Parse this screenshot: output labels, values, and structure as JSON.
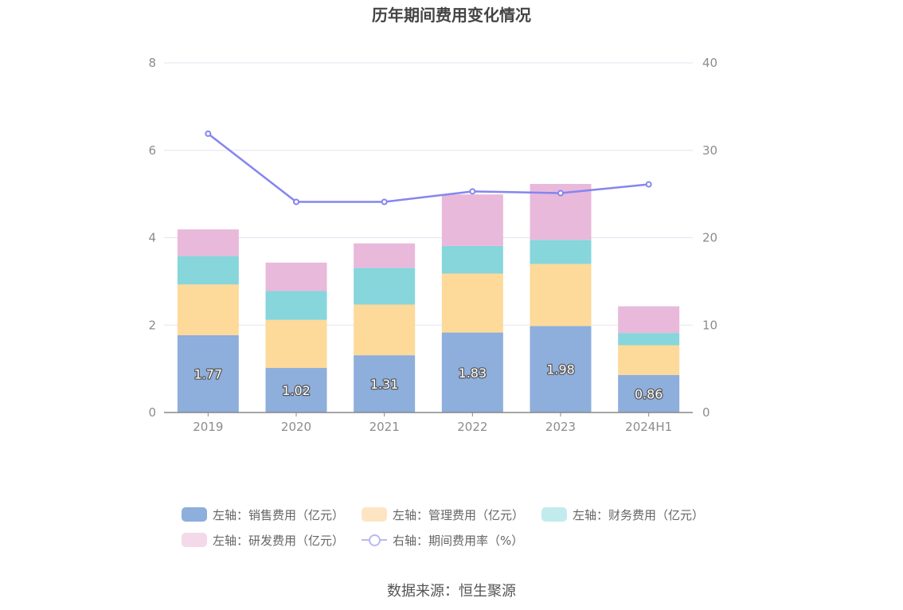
{
  "chart_data": {
    "type": "bar",
    "title": "历年期间费用变化情况",
    "categories": [
      "2019",
      "2020",
      "2021",
      "2022",
      "2023",
      "2024H1"
    ],
    "ylim_left": [
      0,
      8
    ],
    "ylim_right": [
      0,
      40
    ],
    "yticks_left": [
      "0",
      "2",
      "4",
      "6",
      "8"
    ],
    "yticks_right": [
      "0",
      "10",
      "20",
      "30",
      "40"
    ],
    "stacked": true,
    "grid": true,
    "legend_position": "bottom",
    "series": [
      {
        "name": "左轴：销售费用（亿元）",
        "axis": "left",
        "type": "bar",
        "color": "#8eaedb",
        "values": [
          1.77,
          1.02,
          1.31,
          1.83,
          1.98,
          0.86
        ],
        "labels": [
          "1.77",
          "1.02",
          "1.31",
          "1.83",
          "1.98",
          "0.86"
        ]
      },
      {
        "name": "左轴：管理费用（亿元）",
        "axis": "left",
        "type": "bar",
        "color": "#fdd99a",
        "values": [
          1.16,
          1.1,
          1.16,
          1.35,
          1.42,
          0.68
        ]
      },
      {
        "name": "左轴：财务费用（亿元）",
        "axis": "left",
        "type": "bar",
        "color": "#86d6dc",
        "values": [
          0.65,
          0.66,
          0.84,
          0.63,
          0.55,
          0.28
        ]
      },
      {
        "name": "左轴：研发费用（亿元）",
        "axis": "left",
        "type": "bar",
        "color": "#e8b9da",
        "values": [
          0.61,
          0.65,
          0.56,
          1.18,
          1.28,
          0.61
        ]
      },
      {
        "name": "右轴：期间费用率（%）",
        "axis": "right",
        "type": "line",
        "color": "#8585f0",
        "values": [
          31.9,
          24.1,
          24.1,
          25.3,
          25.1,
          26.1
        ]
      }
    ],
    "legend_swatch_colors": [
      "#8eaedb",
      "#fde5c4",
      "#c2ebee",
      "#f3d9ea",
      "#b9b9f0"
    ]
  },
  "source": "数据来源：恒生聚源"
}
